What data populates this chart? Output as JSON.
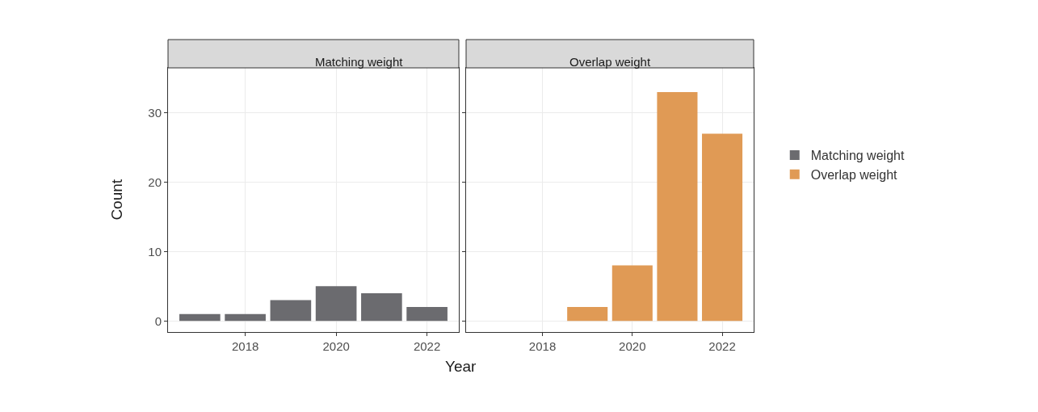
{
  "chart_data": [
    {
      "type": "bar",
      "title": "Matching weight",
      "xlabel": "Year",
      "ylabel": "Count",
      "x": [
        2017,
        2018,
        2019,
        2020,
        2021,
        2022
      ],
      "series": [
        {
          "name": "Matching weight",
          "color": "#6b6b6f",
          "values": [
            1,
            1,
            3,
            5,
            4,
            2
          ]
        }
      ],
      "xlim": [
        2016.3,
        2022.7
      ],
      "xticks": [
        2018,
        2020,
        2022
      ],
      "ylim": [
        -1.6,
        36.5
      ],
      "yticks": [
        0,
        10,
        20,
        30
      ],
      "grid": true,
      "legend": "right"
    },
    {
      "type": "bar",
      "title": "Overlap weight",
      "x": [
        2019,
        2020,
        2021,
        2022
      ],
      "series": [
        {
          "name": "Overlap weight",
          "color": "#e09a55",
          "values": [
            2,
            8,
            33,
            27
          ]
        }
      ],
      "xlim": [
        2016.3,
        2022.7
      ],
      "xticks": [
        2018,
        2020,
        2022
      ],
      "ylim": [
        -1.6,
        36.5
      ],
      "yticks": [
        0,
        10,
        20,
        30
      ],
      "grid": true,
      "legend": "right",
      "tick_labels": "x"
    }
  ]
}
